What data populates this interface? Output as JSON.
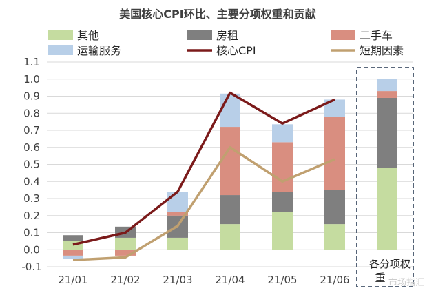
{
  "chart_data": {
    "type": "bar",
    "title": "美国核心CPI环比、主要分项权重和贡献",
    "categories": [
      "21/01",
      "21/02",
      "21/03",
      "21/04",
      "21/05",
      "21/06"
    ],
    "ylim": [
      -0.1,
      1.1
    ],
    "yticks": [
      "-0.1",
      "0.0",
      "0.1",
      "0.2",
      "0.3",
      "0.4",
      "0.5",
      "0.6",
      "0.7",
      "0.8",
      "0.9",
      "1.0",
      "1.1"
    ],
    "grid": true,
    "legend_position": "top",
    "series": [
      {
        "name": "其他",
        "color": "#c5dca0",
        "values": [
          0.05,
          0.07,
          0.07,
          0.15,
          0.22,
          0.15
        ]
      },
      {
        "name": "房租",
        "color": "#7f7f7f",
        "values": [
          0.035,
          0.065,
          0.13,
          0.17,
          0.12,
          0.2
        ]
      },
      {
        "name": "二手车",
        "color": "#d98e80",
        "values": [
          -0.035,
          -0.035,
          0.02,
          0.4,
          0.29,
          0.43
        ]
      },
      {
        "name": "运输服务",
        "color": "#b8cfe8",
        "values": [
          -0.02,
          0.0,
          0.12,
          0.195,
          0.105,
          0.1
        ]
      }
    ],
    "lines": [
      {
        "name": "核心CPI",
        "color": "#7b1a1a",
        "values": [
          0.03,
          0.1,
          0.34,
          0.92,
          0.74,
          0.88
        ]
      },
      {
        "name": "短期因素",
        "color": "#c0a070",
        "values": [
          -0.06,
          -0.045,
          0.14,
          0.6,
          0.4,
          0.53
        ]
      }
    ],
    "weights": {
      "category": "各分项权重",
      "values": [
        {
          "name": "其他",
          "value": 0.48
        },
        {
          "name": "房租",
          "value": 0.41
        },
        {
          "name": "二手车",
          "value": 0.04
        },
        {
          "name": "运输服务",
          "value": 0.07
        }
      ]
    },
    "watermark": "市场指汇"
  }
}
